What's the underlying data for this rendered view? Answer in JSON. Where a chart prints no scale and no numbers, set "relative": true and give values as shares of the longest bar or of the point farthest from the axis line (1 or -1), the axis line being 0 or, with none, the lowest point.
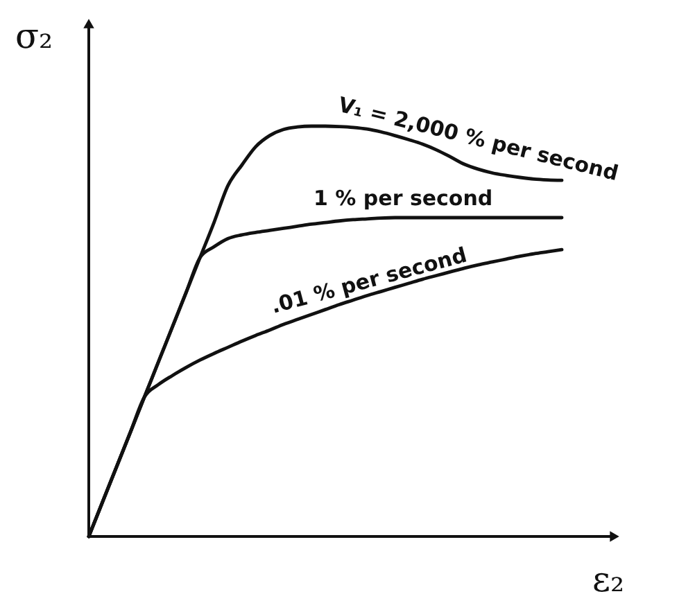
{
  "chart_data": {
    "type": "line",
    "xlabel": "ε₂",
    "ylabel": "σ₂",
    "relative": true,
    "line_style": "solid",
    "categories": [
      null,
      null,
      null,
      null,
      null,
      null,
      null,
      null,
      null,
      null,
      null,
      null,
      null,
      null,
      null,
      null,
      null,
      null,
      null,
      null,
      null,
      null,
      null,
      null,
      null,
      null,
      null,
      null,
      null,
      null,
      null,
      null,
      null,
      null,
      null
    ],
    "series": [
      {
        "name": "V₁ = 2,000 % per second",
        "color": "#111111",
        "values": [
          0,
          0.085,
          0.17,
          0.255,
          0.34,
          0.425,
          0.51,
          0.595,
          0.68,
          0.765,
          0.855,
          0.905,
          0.95,
          0.977,
          0.992,
          0.998,
          1.0,
          1.0,
          0.999,
          0.997,
          0.993,
          0.986,
          0.977,
          0.967,
          0.956,
          0.942,
          0.925,
          0.907,
          0.895,
          0.886,
          0.88,
          0.875,
          0.871,
          0.869,
          0.868
        ]
      },
      {
        "name": "1 % per second",
        "color": "#111111",
        "values": [
          0,
          0.085,
          0.17,
          0.255,
          0.34,
          0.425,
          0.51,
          0.595,
          0.68,
          0.706,
          0.726,
          0.735,
          0.741,
          0.746,
          0.751,
          0.756,
          0.761,
          0.765,
          0.769,
          0.772,
          0.774,
          0.776,
          0.777,
          0.777,
          0.777,
          0.777,
          0.777,
          0.777,
          0.777,
          0.777,
          0.777,
          0.777,
          0.777,
          0.777,
          0.777
        ]
      },
      {
        "name": ".01 % per second",
        "color": "#111111",
        "values": [
          0,
          0.085,
          0.17,
          0.255,
          0.34,
          0.37,
          0.392,
          0.412,
          0.43,
          0.446,
          0.461,
          0.476,
          0.49,
          0.503,
          0.517,
          0.529,
          0.541,
          0.553,
          0.565,
          0.576,
          0.587,
          0.597,
          0.607,
          0.617,
          0.627,
          0.636,
          0.645,
          0.654,
          0.662,
          0.669,
          0.676,
          0.683,
          0.689,
          0.694,
          0.699
        ]
      }
    ]
  }
}
